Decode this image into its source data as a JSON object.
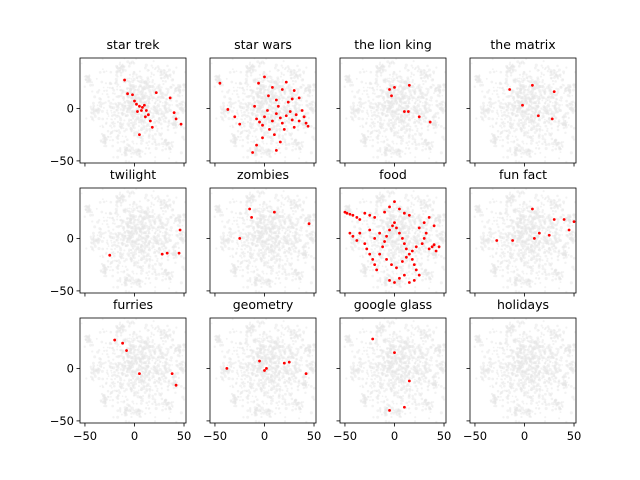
{
  "chart_data": {
    "type": "scatter",
    "layout": "3x4 grid of small-multiple scatter plots, shared x and y axes",
    "xlim": [
      -55,
      52
    ],
    "ylim": [
      -52,
      48
    ],
    "xticks": [
      -50,
      0,
      50
    ],
    "yticks": [
      -50,
      0
    ],
    "grid": false,
    "background_color": "#e6e6e6",
    "highlight_color": "#ff0000",
    "panels": [
      {
        "title": "star trek",
        "points": [
          [
            -10,
            27
          ],
          [
            -7,
            14
          ],
          [
            -2,
            13
          ],
          [
            0,
            7
          ],
          [
            2,
            4
          ],
          [
            5,
            2
          ],
          [
            7,
            -2
          ],
          [
            8,
            1
          ],
          [
            10,
            3
          ],
          [
            3,
            -3
          ],
          [
            12,
            -2
          ],
          [
            14,
            -6
          ],
          [
            16,
            -12
          ],
          [
            18,
            -18
          ],
          [
            11,
            -8
          ],
          [
            5,
            -25
          ],
          [
            22,
            15
          ],
          [
            36,
            10
          ],
          [
            40,
            -4
          ],
          [
            42,
            -10
          ],
          [
            47,
            -15
          ]
        ]
      },
      {
        "title": "star wars",
        "points": [
          [
            -45,
            24
          ],
          [
            -37,
            -1
          ],
          [
            -30,
            -8
          ],
          [
            -25,
            -15
          ],
          [
            -10,
            2
          ],
          [
            -8,
            -10
          ],
          [
            -5,
            -13
          ],
          [
            -2,
            -16
          ],
          [
            0,
            -8
          ],
          [
            3,
            -2
          ],
          [
            5,
            -20
          ],
          [
            8,
            -12
          ],
          [
            10,
            -25
          ],
          [
            12,
            -5
          ],
          [
            14,
            2
          ],
          [
            16,
            -9
          ],
          [
            18,
            -14
          ],
          [
            20,
            -20
          ],
          [
            22,
            -7
          ],
          [
            24,
            6
          ],
          [
            26,
            -3
          ],
          [
            28,
            -11
          ],
          [
            30,
            -18
          ],
          [
            32,
            -6
          ],
          [
            35,
            -12
          ],
          [
            38,
            -2
          ],
          [
            40,
            -8
          ],
          [
            42,
            -14
          ],
          [
            44,
            -17
          ],
          [
            -12,
            -42
          ],
          [
            -6,
            24
          ],
          [
            0,
            30
          ],
          [
            4,
            12
          ],
          [
            8,
            20
          ],
          [
            12,
            8
          ],
          [
            18,
            18
          ],
          [
            22,
            25
          ],
          [
            28,
            9
          ],
          [
            30,
            17
          ],
          [
            35,
            10
          ],
          [
            -2,
            -28
          ],
          [
            -8,
            -35
          ],
          [
            12,
            -40
          ],
          [
            16,
            -32
          ]
        ]
      },
      {
        "title": "the lion king",
        "points": [
          [
            -5,
            18
          ],
          [
            -3,
            12
          ],
          [
            0,
            20
          ],
          [
            10,
            -3
          ],
          [
            14,
            -3
          ],
          [
            15,
            22
          ],
          [
            25,
            -8
          ],
          [
            36,
            -13
          ]
        ]
      },
      {
        "title": "the matrix",
        "points": [
          [
            -15,
            18
          ],
          [
            -2,
            3
          ],
          [
            8,
            22
          ],
          [
            30,
            16
          ],
          [
            14,
            -7
          ],
          [
            28,
            -10
          ]
        ]
      },
      {
        "title": "twilight",
        "points": [
          [
            -25,
            -16
          ],
          [
            28,
            -15
          ],
          [
            33,
            -14
          ],
          [
            45,
            -14
          ],
          [
            46,
            8
          ]
        ]
      },
      {
        "title": "zombies",
        "points": [
          [
            -25,
            0
          ],
          [
            -15,
            28
          ],
          [
            -13,
            20
          ],
          [
            10,
            25
          ],
          [
            45,
            14
          ]
        ]
      },
      {
        "title": "food",
        "points": [
          [
            -50,
            25
          ],
          [
            -48,
            24
          ],
          [
            -45,
            23
          ],
          [
            -42,
            22
          ],
          [
            -38,
            20
          ],
          [
            -35,
            18
          ],
          [
            -30,
            24
          ],
          [
            -25,
            22
          ],
          [
            -20,
            20
          ],
          [
            -10,
            25
          ],
          [
            -5,
            30
          ],
          [
            0,
            35
          ],
          [
            5,
            28
          ],
          [
            10,
            24
          ],
          [
            15,
            22
          ],
          [
            -45,
            5
          ],
          [
            -42,
            2
          ],
          [
            -38,
            -2
          ],
          [
            -35,
            5
          ],
          [
            -30,
            -5
          ],
          [
            -28,
            -10
          ],
          [
            -25,
            -15
          ],
          [
            -22,
            -20
          ],
          [
            -20,
            -25
          ],
          [
            -18,
            -30
          ],
          [
            -15,
            -15
          ],
          [
            -12,
            -8
          ],
          [
            -10,
            -3
          ],
          [
            -8,
            2
          ],
          [
            -5,
            8
          ],
          [
            -2,
            12
          ],
          [
            0,
            15
          ],
          [
            2,
            10
          ],
          [
            5,
            5
          ],
          [
            8,
            0
          ],
          [
            10,
            -5
          ],
          [
            12,
            -10
          ],
          [
            15,
            -15
          ],
          [
            18,
            -20
          ],
          [
            20,
            -25
          ],
          [
            22,
            -30
          ],
          [
            25,
            -35
          ],
          [
            28,
            -5
          ],
          [
            30,
            0
          ],
          [
            32,
            5
          ],
          [
            35,
            -10
          ],
          [
            38,
            -8
          ],
          [
            40,
            -6
          ],
          [
            42,
            -12
          ],
          [
            45,
            -8
          ],
          [
            -5,
            -40
          ],
          [
            0,
            -42
          ],
          [
            5,
            -38
          ],
          [
            10,
            -35
          ],
          [
            15,
            -42
          ],
          [
            20,
            -40
          ],
          [
            -15,
            5
          ],
          [
            -20,
            0
          ],
          [
            -25,
            8
          ],
          [
            25,
            10
          ],
          [
            30,
            15
          ],
          [
            35,
            20
          ],
          [
            40,
            12
          ],
          [
            -8,
            -20
          ],
          [
            -3,
            -25
          ],
          [
            2,
            -28
          ],
          [
            8,
            -22
          ],
          [
            12,
            -18
          ],
          [
            18,
            -12
          ],
          [
            22,
            -8
          ]
        ]
      },
      {
        "title": "fun fact",
        "points": [
          [
            -28,
            -2
          ],
          [
            -12,
            -2
          ],
          [
            8,
            28
          ],
          [
            10,
            0
          ],
          [
            15,
            5
          ],
          [
            25,
            3
          ],
          [
            30,
            18
          ],
          [
            40,
            18
          ],
          [
            45,
            8
          ],
          [
            50,
            16
          ]
        ]
      },
      {
        "title": "furries",
        "points": [
          [
            -20,
            27
          ],
          [
            -12,
            24
          ],
          [
            -8,
            17
          ],
          [
            5,
            -5
          ],
          [
            38,
            -5
          ],
          [
            42,
            -16
          ]
        ]
      },
      {
        "title": "geometry",
        "points": [
          [
            -38,
            0
          ],
          [
            -5,
            7
          ],
          [
            0,
            -2
          ],
          [
            2,
            0
          ],
          [
            20,
            5
          ],
          [
            25,
            6
          ],
          [
            42,
            -5
          ]
        ]
      },
      {
        "title": "google glass",
        "points": [
          [
            -22,
            28
          ],
          [
            -5,
            -40
          ],
          [
            0,
            15
          ],
          [
            10,
            -37
          ],
          [
            15,
            -12
          ]
        ]
      },
      {
        "title": "holidays",
        "points": []
      }
    ]
  }
}
